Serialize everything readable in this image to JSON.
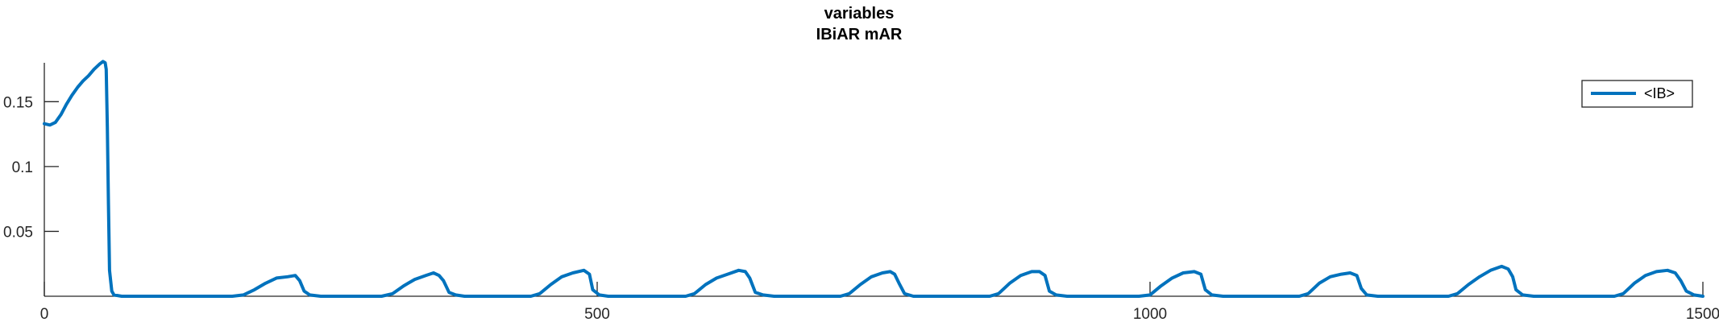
{
  "chart_data": {
    "type": "line",
    "title": "variables",
    "subtitle": "IBiAR mAR",
    "xlabel": "",
    "ylabel": "",
    "xlim": [
      0,
      1500
    ],
    "ylim": [
      0,
      0.18
    ],
    "x_ticks": [
      {
        "value": 0,
        "label": "0"
      },
      {
        "value": 500,
        "label": "500"
      },
      {
        "value": 1000,
        "label": "1000"
      },
      {
        "value": 1500,
        "label": "1500"
      }
    ],
    "y_ticks": [
      {
        "value": 0.05,
        "label": "0.05"
      },
      {
        "value": 0.1,
        "label": "0.1"
      },
      {
        "value": 0.15,
        "label": "0.15"
      }
    ],
    "grid": false,
    "legend_position": "top-right",
    "series": [
      {
        "name": "<IB>",
        "color": "#0072bd",
        "points": [
          [
            0,
            0.133
          ],
          [
            5,
            0.132
          ],
          [
            10,
            0.134
          ],
          [
            15,
            0.14
          ],
          [
            20,
            0.148
          ],
          [
            25,
            0.155
          ],
          [
            30,
            0.161
          ],
          [
            35,
            0.166
          ],
          [
            40,
            0.17
          ],
          [
            45,
            0.175
          ],
          [
            50,
            0.179
          ],
          [
            53,
            0.181
          ],
          [
            55,
            0.18
          ],
          [
            56,
            0.175
          ],
          [
            57,
            0.13
          ],
          [
            58,
            0.07
          ],
          [
            59,
            0.02
          ],
          [
            61,
            0.004
          ],
          [
            63,
            0.001
          ],
          [
            70,
            0.0
          ],
          [
            170,
            0.0
          ],
          [
            180,
            0.001
          ],
          [
            190,
            0.005
          ],
          [
            200,
            0.01
          ],
          [
            210,
            0.014
          ],
          [
            220,
            0.015
          ],
          [
            227,
            0.016
          ],
          [
            231,
            0.012
          ],
          [
            235,
            0.004
          ],
          [
            240,
            0.001
          ],
          [
            250,
            0.0
          ],
          [
            305,
            0.0
          ],
          [
            315,
            0.002
          ],
          [
            325,
            0.008
          ],
          [
            335,
            0.013
          ],
          [
            345,
            0.016
          ],
          [
            352,
            0.018
          ],
          [
            357,
            0.016
          ],
          [
            361,
            0.012
          ],
          [
            366,
            0.003
          ],
          [
            372,
            0.001
          ],
          [
            380,
            0.0
          ],
          [
            440,
            0.0
          ],
          [
            448,
            0.002
          ],
          [
            458,
            0.009
          ],
          [
            468,
            0.015
          ],
          [
            478,
            0.018
          ],
          [
            488,
            0.02
          ],
          [
            493,
            0.017
          ],
          [
            496,
            0.005
          ],
          [
            502,
            0.001
          ],
          [
            510,
            0.0
          ],
          [
            580,
            0.0
          ],
          [
            588,
            0.002
          ],
          [
            598,
            0.009
          ],
          [
            608,
            0.014
          ],
          [
            618,
            0.017
          ],
          [
            628,
            0.02
          ],
          [
            634,
            0.019
          ],
          [
            638,
            0.014
          ],
          [
            643,
            0.003
          ],
          [
            650,
            0.001
          ],
          [
            660,
            0.0
          ],
          [
            720,
            0.0
          ],
          [
            728,
            0.002
          ],
          [
            738,
            0.009
          ],
          [
            748,
            0.015
          ],
          [
            758,
            0.018
          ],
          [
            765,
            0.019
          ],
          [
            769,
            0.017
          ],
          [
            773,
            0.01
          ],
          [
            778,
            0.002
          ],
          [
            786,
            0.0
          ],
          [
            855,
            0.0
          ],
          [
            863,
            0.002
          ],
          [
            873,
            0.01
          ],
          [
            883,
            0.016
          ],
          [
            893,
            0.019
          ],
          [
            900,
            0.019
          ],
          [
            905,
            0.016
          ],
          [
            909,
            0.004
          ],
          [
            915,
            0.001
          ],
          [
            925,
            0.0
          ],
          [
            990,
            0.0
          ],
          [
            1000,
            0.001
          ],
          [
            1010,
            0.008
          ],
          [
            1020,
            0.014
          ],
          [
            1030,
            0.018
          ],
          [
            1040,
            0.019
          ],
          [
            1046,
            0.017
          ],
          [
            1050,
            0.005
          ],
          [
            1056,
            0.001
          ],
          [
            1066,
            0.0
          ],
          [
            1135,
            0.0
          ],
          [
            1143,
            0.002
          ],
          [
            1153,
            0.01
          ],
          [
            1163,
            0.015
          ],
          [
            1173,
            0.017
          ],
          [
            1181,
            0.018
          ],
          [
            1187,
            0.016
          ],
          [
            1191,
            0.006
          ],
          [
            1196,
            0.001
          ],
          [
            1206,
            0.0
          ],
          [
            1270,
            0.0
          ],
          [
            1278,
            0.002
          ],
          [
            1288,
            0.009
          ],
          [
            1298,
            0.015
          ],
          [
            1308,
            0.02
          ],
          [
            1318,
            0.023
          ],
          [
            1324,
            0.021
          ],
          [
            1328,
            0.015
          ],
          [
            1331,
            0.005
          ],
          [
            1337,
            0.001
          ],
          [
            1347,
            0.0
          ],
          [
            1420,
            0.0
          ],
          [
            1428,
            0.002
          ],
          [
            1438,
            0.01
          ],
          [
            1448,
            0.016
          ],
          [
            1458,
            0.019
          ],
          [
            1468,
            0.02
          ],
          [
            1475,
            0.018
          ],
          [
            1480,
            0.012
          ],
          [
            1485,
            0.004
          ],
          [
            1492,
            0.001
          ],
          [
            1500,
            0.0
          ]
        ]
      }
    ]
  }
}
